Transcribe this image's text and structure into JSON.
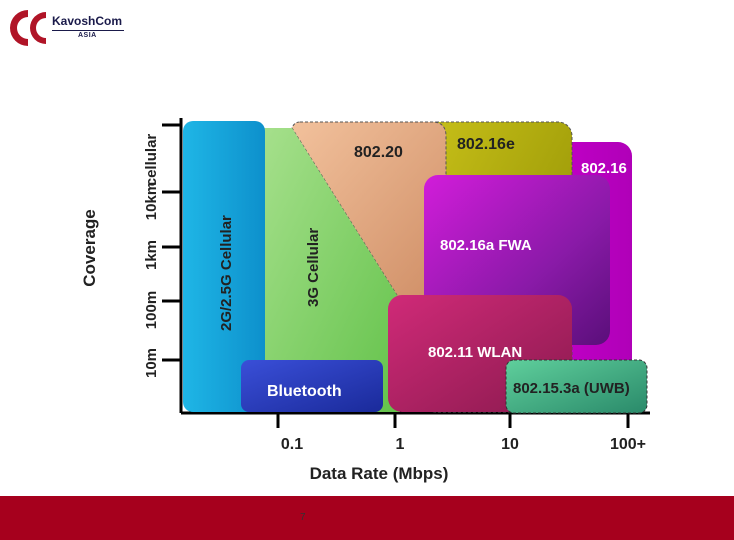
{
  "logo": {
    "name": "KavoshCom",
    "sub": "ASIA"
  },
  "axes": {
    "y_title": "Coverage",
    "y_ticks": [
      "10m",
      "100m",
      "1km",
      "10km",
      "cellular"
    ],
    "x_title": "Data Rate (Mbps)",
    "x_ticks": [
      "0.1",
      "1",
      "10",
      "100+"
    ]
  },
  "regions": {
    "cellular_2g": "2G/2.5G Cellular",
    "cellular_3g": "3G Cellular",
    "ieee80220": "802.20",
    "ieee80216e": "802.16e",
    "ieee80216": "802.16",
    "ieee80216a": "802.16a FWA",
    "wlan": "802.11 WLAN",
    "bluetooth": "Bluetooth",
    "uwb": "802.15.3a (UWB)"
  },
  "footer": {
    "page_number": "7",
    "color": "#a6001d"
  }
}
